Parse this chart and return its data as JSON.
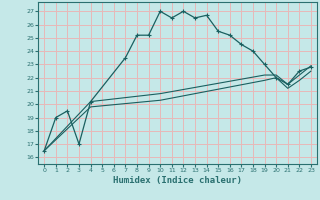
{
  "xlabel": "Humidex (Indice chaleur)",
  "bg_color": "#c5e8e8",
  "grid_color": "#e8b8b8",
  "line_color": "#1a6060",
  "spine_color": "#2a7070",
  "xlim": [
    -0.5,
    23.5
  ],
  "ylim": [
    15.5,
    27.7
  ],
  "xticks": [
    0,
    1,
    2,
    3,
    4,
    5,
    6,
    7,
    8,
    9,
    10,
    11,
    12,
    13,
    14,
    15,
    16,
    17,
    18,
    19,
    20,
    21,
    22,
    23
  ],
  "yticks": [
    16,
    17,
    18,
    19,
    20,
    21,
    22,
    23,
    24,
    25,
    26,
    27
  ],
  "line1_x": [
    0,
    1,
    2,
    3,
    4,
    7,
    8,
    9,
    10,
    11,
    12,
    13,
    14,
    15,
    16,
    17,
    18,
    19,
    20,
    21,
    22,
    23
  ],
  "line1_y": [
    16.5,
    19.0,
    19.5,
    17.0,
    20.2,
    23.5,
    25.2,
    25.2,
    27.0,
    26.5,
    27.0,
    26.5,
    26.7,
    25.5,
    25.2,
    24.5,
    24.0,
    23.0,
    22.0,
    21.5,
    22.5,
    22.8
  ],
  "line2_x": [
    0,
    4,
    10,
    19,
    20,
    21,
    22,
    23
  ],
  "line2_y": [
    16.5,
    19.8,
    20.3,
    21.8,
    22.0,
    21.2,
    21.8,
    22.5
  ],
  "line3_x": [
    0,
    4,
    10,
    19,
    20,
    21,
    22,
    23
  ],
  "line3_y": [
    16.5,
    20.2,
    20.8,
    22.2,
    22.2,
    21.5,
    22.2,
    22.9
  ]
}
